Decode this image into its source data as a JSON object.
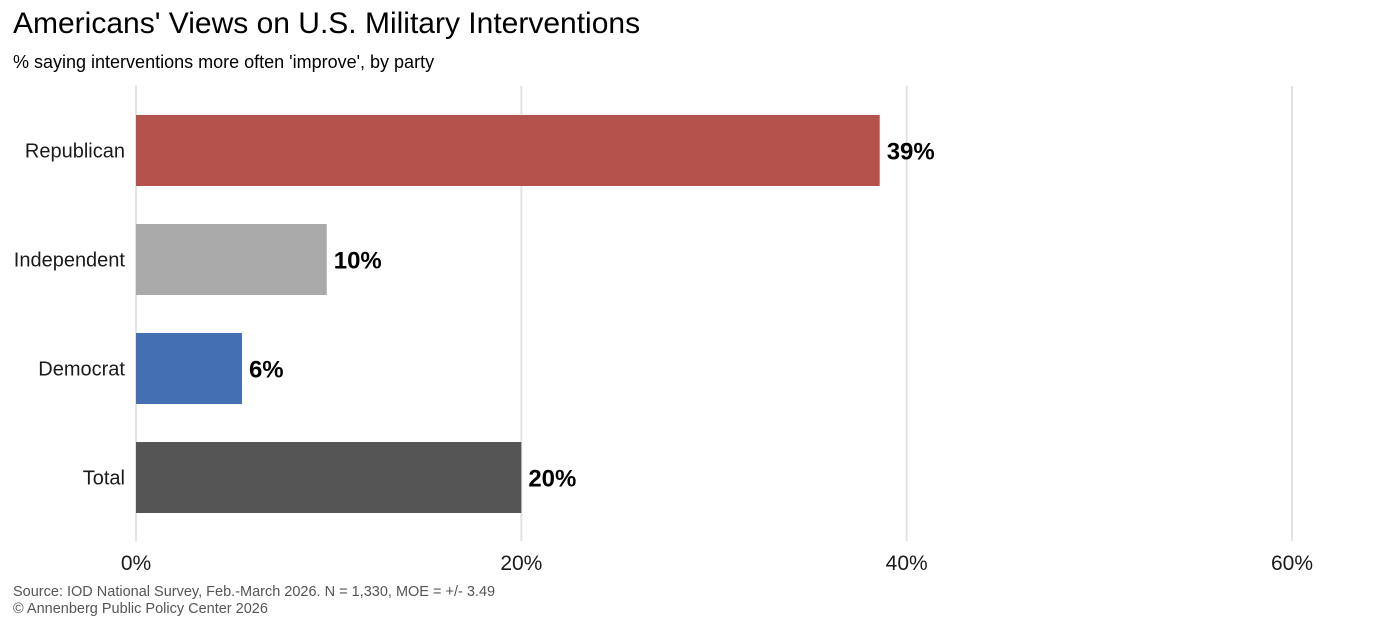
{
  "header": {
    "title": "Americans' Views on U.S. Military Interventions",
    "subtitle": "% saying interventions more often 'improve', by party"
  },
  "caption": {
    "source": "Source: IOD National Survey, Feb.-March 2026. N = 1,330, MOE = +/- 3.49",
    "copyright": "© Annenberg Public Policy Center 2026"
  },
  "chart_data": {
    "type": "bar",
    "orientation": "horizontal",
    "title": "Americans' Views on U.S. Military Interventions",
    "subtitle": "% saying interventions more often 'improve', by party",
    "categories": [
      "Republican",
      "Independent",
      "Democrat",
      "Total"
    ],
    "values": [
      38.6,
      9.9,
      5.5,
      20.0
    ],
    "value_labels": [
      "39%",
      "10%",
      "6%",
      "20%"
    ],
    "colors": [
      "#b3534b",
      "#aaaaaa",
      "#4470b3",
      "#555555"
    ],
    "xlim": [
      0,
      60
    ],
    "xticks": [
      0,
      20,
      40,
      60
    ],
    "xtick_labels": [
      "0%",
      "20%",
      "40%",
      "60%"
    ],
    "xlabel": "",
    "ylabel": "",
    "grid": true,
    "legend": "none"
  }
}
